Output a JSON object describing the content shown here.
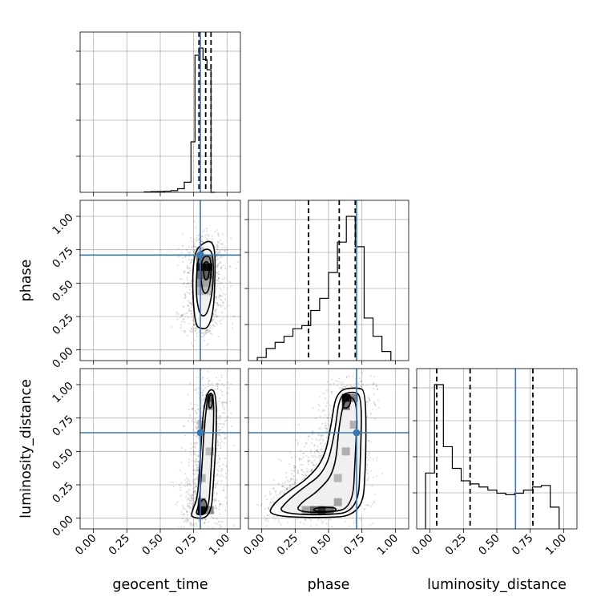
{
  "chart_data": {
    "type": "corner",
    "parameters": [
      "geocent_time",
      "phase",
      "luminosity_distance"
    ],
    "axis_labels": {
      "geocent_time": "geocent_time",
      "phase": "phase",
      "luminosity_distance": "luminosity_distance"
    },
    "tick_values": [
      0.0,
      0.25,
      0.5,
      0.75,
      1.0
    ],
    "tick_labels": [
      "0.00",
      "0.25",
      "0.50",
      "0.75",
      "1.00"
    ],
    "xlim": [
      -0.1,
      1.1
    ],
    "ylim": [
      -0.08,
      1.12
    ],
    "grid": true,
    "truths": {
      "geocent_time": 0.8,
      "phase": 0.71,
      "luminosity_distance": 0.64
    },
    "colors": {
      "truth": "#3a78b2",
      "hist": "#000000",
      "points": "#000000"
    },
    "marginals": {
      "geocent_time": {
        "bin_edges": [
          0.38,
          0.43,
          0.48,
          0.53,
          0.58,
          0.63,
          0.68,
          0.73,
          0.76,
          0.79,
          0.82,
          0.85,
          0.88,
          0.91
        ],
        "counts": [
          0.003,
          0.005,
          0.006,
          0.008,
          0.012,
          0.025,
          0.07,
          0.35,
          0.95,
          1.0,
          0.92,
          0.85,
          0.0
        ],
        "quantiles": [
          0.79,
          0.84,
          0.88
        ]
      },
      "phase": {
        "bin_edges": [
          -0.0333,
          0.0333,
          0.1,
          0.1667,
          0.2333,
          0.3,
          0.3667,
          0.4333,
          0.5,
          0.5667,
          0.6333,
          0.7,
          0.7667,
          0.8333,
          0.9,
          0.9667
        ],
        "counts": [
          0.02,
          0.08,
          0.12,
          0.16,
          0.21,
          0.23,
          0.33,
          0.41,
          0.58,
          0.78,
          0.95,
          0.75,
          0.28,
          0.16,
          0.06,
          0.0
        ],
        "quantiles": [
          0.35,
          0.58,
          0.7
        ]
      },
      "luminosity_distance": {
        "bin_edges": [
          -0.0333,
          0.0333,
          0.1,
          0.1667,
          0.2333,
          0.3,
          0.3667,
          0.4333,
          0.5,
          0.5667,
          0.6333,
          0.7,
          0.7667,
          0.8333,
          0.9,
          0.9667
        ],
        "counts": [
          0.36,
          0.93,
          0.53,
          0.39,
          0.31,
          0.29,
          0.27,
          0.25,
          0.23,
          0.22,
          0.23,
          0.25,
          0.27,
          0.28,
          0.14,
          0.0
        ],
        "quantiles": [
          0.05,
          0.3,
          0.77
        ]
      }
    },
    "pair_plots": [
      {
        "x": "geocent_time",
        "y": "phase",
        "density_cells": [
          {
            "x": 0.8,
            "y": 0.62,
            "d": 0.9
          },
          {
            "x": 0.86,
            "y": 0.62,
            "d": 0.95
          },
          {
            "x": 0.86,
            "y": 0.56,
            "d": 0.6
          },
          {
            "x": 0.8,
            "y": 0.56,
            "d": 0.55
          },
          {
            "x": 0.8,
            "y": 0.68,
            "d": 0.45
          },
          {
            "x": 0.86,
            "y": 0.68,
            "d": 0.4
          },
          {
            "x": 0.8,
            "y": 0.5,
            "d": 0.35
          },
          {
            "x": 0.86,
            "y": 0.5,
            "d": 0.3
          },
          {
            "x": 0.8,
            "y": 0.44,
            "d": 0.2
          },
          {
            "x": 0.86,
            "y": 0.44,
            "d": 0.18
          },
          {
            "x": 0.8,
            "y": 0.74,
            "d": 0.15
          }
        ],
        "contours": [
          [
            [
              0.8,
              0.16
            ],
            [
              0.86,
              0.16
            ],
            [
              0.9,
              0.3
            ],
            [
              0.91,
              0.55
            ],
            [
              0.91,
              0.75
            ],
            [
              0.88,
              0.82
            ],
            [
              0.82,
              0.8
            ],
            [
              0.76,
              0.74
            ],
            [
              0.74,
              0.55
            ],
            [
              0.75,
              0.3
            ],
            [
              0.77,
              0.18
            ]
          ],
          [
            [
              0.8,
              0.25
            ],
            [
              0.85,
              0.26
            ],
            [
              0.89,
              0.42
            ],
            [
              0.9,
              0.6
            ],
            [
              0.89,
              0.74
            ],
            [
              0.84,
              0.76
            ],
            [
              0.79,
              0.72
            ],
            [
              0.77,
              0.56
            ],
            [
              0.77,
              0.38
            ]
          ],
          [
            [
              0.82,
              0.42
            ],
            [
              0.86,
              0.43
            ],
            [
              0.88,
              0.55
            ],
            [
              0.88,
              0.68
            ],
            [
              0.85,
              0.71
            ],
            [
              0.81,
              0.68
            ],
            [
              0.8,
              0.55
            ]
          ],
          [
            [
              0.83,
              0.52
            ],
            [
              0.86,
              0.53
            ],
            [
              0.87,
              0.62
            ],
            [
              0.85,
              0.67
            ],
            [
              0.82,
              0.64
            ]
          ]
        ]
      },
      {
        "x": "geocent_time",
        "y": "luminosity_distance",
        "density_cells": [
          {
            "x": 0.81,
            "y": 0.06,
            "d": 0.95
          },
          {
            "x": 0.81,
            "y": 0.12,
            "d": 0.5
          },
          {
            "x": 0.87,
            "y": 0.06,
            "d": 0.4
          },
          {
            "x": 0.87,
            "y": 0.9,
            "d": 0.6
          },
          {
            "x": 0.87,
            "y": 0.84,
            "d": 0.35
          },
          {
            "x": 0.81,
            "y": 0.3,
            "d": 0.25
          },
          {
            "x": 0.87,
            "y": 0.5,
            "d": 0.2
          },
          {
            "x": 0.81,
            "y": 0.7,
            "d": 0.2
          }
        ],
        "contours": [
          [
            [
              0.73,
              0.0
            ],
            [
              0.88,
              0.0
            ],
            [
              0.9,
              0.3
            ],
            [
              0.92,
              0.6
            ],
            [
              0.92,
              0.95
            ],
            [
              0.86,
              0.97
            ],
            [
              0.82,
              0.8
            ],
            [
              0.8,
              0.45
            ],
            [
              0.78,
              0.15
            ],
            [
              0.74,
              0.06
            ]
          ],
          [
            [
              0.76,
              0.02
            ],
            [
              0.86,
              0.03
            ],
            [
              0.88,
              0.35
            ],
            [
              0.9,
              0.7
            ],
            [
              0.9,
              0.93
            ],
            [
              0.86,
              0.94
            ],
            [
              0.83,
              0.7
            ],
            [
              0.81,
              0.35
            ],
            [
              0.79,
              0.1
            ]
          ],
          [
            [
              0.79,
              0.03
            ],
            [
              0.84,
              0.04
            ],
            [
              0.85,
              0.12
            ],
            [
              0.82,
              0.15
            ],
            [
              0.79,
              0.1
            ]
          ],
          [
            [
              0.86,
              0.82
            ],
            [
              0.89,
              0.83
            ],
            [
              0.89,
              0.93
            ],
            [
              0.87,
              0.94
            ]
          ]
        ]
      },
      {
        "x": "phase",
        "y": "luminosity_distance",
        "density_cells": [
          {
            "x": 0.63,
            "y": 0.9,
            "d": 0.95
          },
          {
            "x": 0.63,
            "y": 0.84,
            "d": 0.5
          },
          {
            "x": 0.69,
            "y": 0.9,
            "d": 0.45
          },
          {
            "x": 0.45,
            "y": 0.06,
            "d": 0.8
          },
          {
            "x": 0.39,
            "y": 0.06,
            "d": 0.55
          },
          {
            "x": 0.51,
            "y": 0.06,
            "d": 0.5
          },
          {
            "x": 0.33,
            "y": 0.06,
            "d": 0.3
          },
          {
            "x": 0.57,
            "y": 0.12,
            "d": 0.3
          },
          {
            "x": 0.63,
            "y": 0.5,
            "d": 0.25
          },
          {
            "x": 0.57,
            "y": 0.3,
            "d": 0.22
          },
          {
            "x": 0.69,
            "y": 0.7,
            "d": 0.25
          }
        ],
        "contours": [
          [
            [
              0.05,
              0.02
            ],
            [
              0.4,
              0.0
            ],
            [
              0.75,
              0.02
            ],
            [
              0.78,
              0.4
            ],
            [
              0.78,
              0.95
            ],
            [
              0.72,
              0.98
            ],
            [
              0.56,
              0.96
            ],
            [
              0.52,
              0.7
            ],
            [
              0.47,
              0.45
            ],
            [
              0.35,
              0.3
            ],
            [
              0.2,
              0.2
            ],
            [
              0.08,
              0.1
            ]
          ],
          [
            [
              0.12,
              0.04
            ],
            [
              0.45,
              0.02
            ],
            [
              0.72,
              0.05
            ],
            [
              0.74,
              0.45
            ],
            [
              0.75,
              0.92
            ],
            [
              0.68,
              0.95
            ],
            [
              0.58,
              0.92
            ],
            [
              0.55,
              0.65
            ],
            [
              0.48,
              0.35
            ],
            [
              0.3,
              0.22
            ],
            [
              0.18,
              0.12
            ]
          ],
          [
            [
              0.25,
              0.05
            ],
            [
              0.5,
              0.04
            ],
            [
              0.68,
              0.08
            ],
            [
              0.7,
              0.45
            ],
            [
              0.72,
              0.88
            ],
            [
              0.63,
              0.92
            ],
            [
              0.58,
              0.72
            ],
            [
              0.55,
              0.35
            ],
            [
              0.42,
              0.2
            ],
            [
              0.3,
              0.12
            ]
          ],
          [
            [
              0.38,
              0.05
            ],
            [
              0.55,
              0.05
            ],
            [
              0.56,
              0.08
            ],
            [
              0.4,
              0.08
            ]
          ],
          [
            [
              0.6,
              0.82
            ],
            [
              0.66,
              0.83
            ],
            [
              0.67,
              0.92
            ],
            [
              0.62,
              0.93
            ]
          ]
        ]
      }
    ]
  }
}
